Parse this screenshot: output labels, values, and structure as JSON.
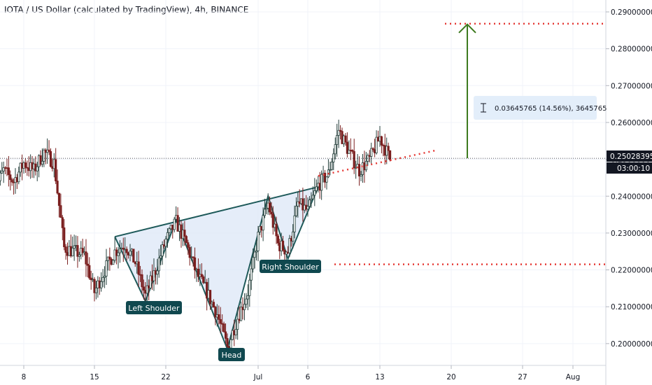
{
  "header": {
    "title": "IOTA / US Dollar (calculated by TradingView), 4h, BINANCE"
  },
  "price_scale": {
    "ticks": [
      "0.29000000",
      "0.28000000",
      "0.27000000",
      "0.26000000",
      "0.25000000",
      "0.24000000",
      "0.23000000",
      "0.22000000",
      "0.21000000",
      "0.20000000"
    ],
    "last_price": "0.25028395",
    "countdown": "03:00:10"
  },
  "time_scale": {
    "ticks": [
      "8",
      "15",
      "22",
      "Jul",
      "6",
      "13",
      "20",
      "27",
      "Aug"
    ]
  },
  "annotations": {
    "left_shoulder": "Left Shoulder",
    "head": "Head",
    "right_shoulder": "Right Shoulder"
  },
  "measure": {
    "text": "0.03645765 (14.56%), 3645765"
  },
  "colors": {
    "up": "#26403c",
    "down": "#7a1e1e",
    "pattern_line": "#1e5a5a",
    "pattern_fill": "#dfe8f7",
    "label_bg": "#10484f",
    "dotted_red": "#e53935",
    "target_arrow": "#3d7a1e",
    "grid": "#f0f3fa"
  },
  "chart_data": {
    "type": "candlestick",
    "title": "IOTA / US Dollar (calculated by TradingView), 4h, BINANCE",
    "y_range": [
      0.194,
      0.295
    ],
    "y_ticks": [
      0.29,
      0.28,
      0.27,
      0.26,
      0.25,
      0.24,
      0.23,
      0.22,
      0.21,
      0.2
    ],
    "x_ticks": [
      "8",
      "15",
      "22",
      "Jul",
      "6",
      "13",
      "20",
      "27",
      "Aug"
    ],
    "last_price": 0.25028395,
    "price_path": [
      [
        "Jun 5",
        0.241
      ],
      [
        "Jun 6",
        0.247
      ],
      [
        "Jun 7",
        0.244
      ],
      [
        "Jun 8",
        0.249
      ],
      [
        "Jun 9",
        0.247
      ],
      [
        "Jun 10",
        0.252
      ],
      [
        "Jun 11",
        0.249
      ],
      [
        "Jun 12",
        0.226
      ],
      [
        "Jun 13",
        0.225
      ],
      [
        "Jun 14",
        0.224
      ],
      [
        "Jun 15",
        0.214
      ],
      [
        "Jun 16",
        0.22
      ],
      [
        "Jun 17",
        0.225
      ],
      [
        "Jun 18",
        0.227
      ],
      [
        "Jun 19",
        0.222
      ],
      [
        "Jun 20",
        0.213
      ],
      [
        "Jun 21",
        0.22
      ],
      [
        "Jun 22",
        0.228
      ],
      [
        "Jun 23",
        0.233
      ],
      [
        "Jun 24",
        0.227
      ],
      [
        "Jun 25",
        0.219
      ],
      [
        "Jun 26",
        0.214
      ],
      [
        "Jun 27",
        0.208
      ],
      [
        "Jun 28",
        0.199
      ],
      [
        "Jun 29",
        0.207
      ],
      [
        "Jun 30",
        0.214
      ],
      [
        "Jul 1",
        0.229
      ],
      [
        "Jul 2",
        0.238
      ],
      [
        "Jul 3",
        0.227
      ],
      [
        "Jul 4",
        0.225
      ],
      [
        "Jul 5",
        0.238
      ],
      [
        "Jul 6",
        0.236
      ],
      [
        "Jul 7",
        0.243
      ],
      [
        "Jul 8",
        0.246
      ],
      [
        "Jul 9",
        0.258
      ],
      [
        "Jul 10",
        0.252
      ],
      [
        "Jul 11",
        0.247
      ],
      [
        "Jul 12",
        0.25
      ],
      [
        "Jul 13",
        0.256
      ],
      [
        "Jul 14",
        0.25
      ]
    ],
    "pattern": {
      "type": "inverse head and shoulders",
      "points": [
        [
          "Jun 17",
          0.229
        ],
        [
          "Jun 20",
          0.2115
        ],
        [
          "Jun 23",
          0.2335
        ],
        [
          "Jun 28",
          0.1985
        ],
        [
          "Jul 2",
          0.24
        ],
        [
          "Jul 4",
          0.223
        ],
        [
          "Jul 7",
          0.2425
        ]
      ],
      "labels": [
        "Left Shoulder",
        "Head",
        "Right Shoulder"
      ]
    },
    "neckline": {
      "from": [
        "Jun 17",
        0.229
      ],
      "to": [
        "Jul 7",
        0.2425
      ]
    },
    "target_line": 0.2868,
    "support_line": 0.2215,
    "measured_move": {
      "from": 0.2503,
      "to": 0.2868,
      "change": 0.03645765,
      "percent": 14.56
    },
    "grid": true
  }
}
